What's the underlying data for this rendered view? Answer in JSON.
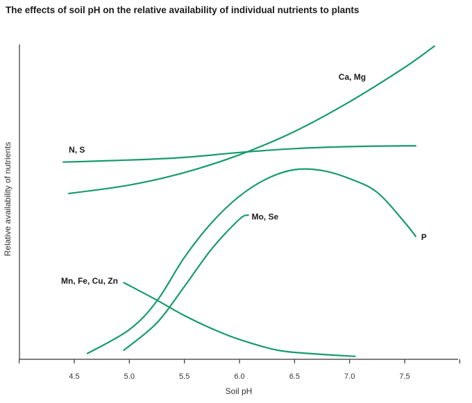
{
  "title": "The effects of soil pH on the relative availability of individual nutrients to plants",
  "chart_data": {
    "type": "line",
    "title": "The effects of soil pH on the relative availability of individual nutrients to plants",
    "xlabel": "Soil pH",
    "ylabel": "Relative availability of nutrients",
    "xlim": [
      4.0,
      8.5
    ],
    "ylim": [
      0,
      100
    ],
    "xticks": [
      4.5,
      5.0,
      5.5,
      6.0,
      6.5,
      7.0,
      7.5
    ],
    "xtick_labels": [
      "4.5",
      "5.0",
      "5.5",
      "6.0",
      "6.5",
      "7.0",
      "7.5"
    ],
    "grid": false,
    "color": "#169B6B",
    "series": [
      {
        "name": "Ca, Mg",
        "label_anchor": [
          6.9,
          96
        ],
        "x": [
          4.45,
          5.0,
          5.5,
          6.0,
          6.5,
          7.0,
          7.5,
          7.77
        ],
        "y": [
          56.9,
          59.8,
          64.1,
          70.2,
          78.2,
          88.4,
          100.2,
          107.5
        ]
      },
      {
        "name": "N, S",
        "label_anchor": [
          4.45,
          71
        ],
        "x": [
          4.4,
          5.0,
          5.5,
          6.0,
          6.5,
          7.0,
          7.6
        ],
        "y": [
          67.7,
          68.4,
          69.3,
          71.0,
          72.3,
          73.0,
          73.3
        ]
      },
      {
        "name": "P",
        "label_anchor": [
          7.65,
          41
        ],
        "x": [
          4.62,
          5.0,
          5.25,
          5.5,
          5.75,
          6.0,
          6.25,
          6.5,
          6.75,
          7.0,
          7.25,
          7.5,
          7.6
        ],
        "y": [
          2.0,
          10.2,
          20.0,
          35.0,
          47.0,
          56.0,
          62.0,
          65.1,
          64.8,
          62.0,
          57.3,
          47.0,
          42.2
        ]
      },
      {
        "name": "Mo, Se",
        "label_anchor": [
          6.11,
          48
        ],
        "x": [
          4.95,
          5.25,
          5.5,
          5.75,
          6.0,
          6.08
        ],
        "y": [
          3.1,
          12.5,
          25.0,
          38.0,
          48.1,
          49.5
        ]
      },
      {
        "name": "Mn, Fe, Cu, Zn",
        "label_anchor": [
          4.38,
          26
        ],
        "x": [
          4.95,
          5.25,
          5.5,
          5.75,
          6.0,
          6.35,
          6.7,
          7.05
        ],
        "y": [
          26.3,
          20.3,
          15.0,
          10.5,
          6.8,
          3.1,
          1.8,
          1.0
        ]
      }
    ]
  }
}
